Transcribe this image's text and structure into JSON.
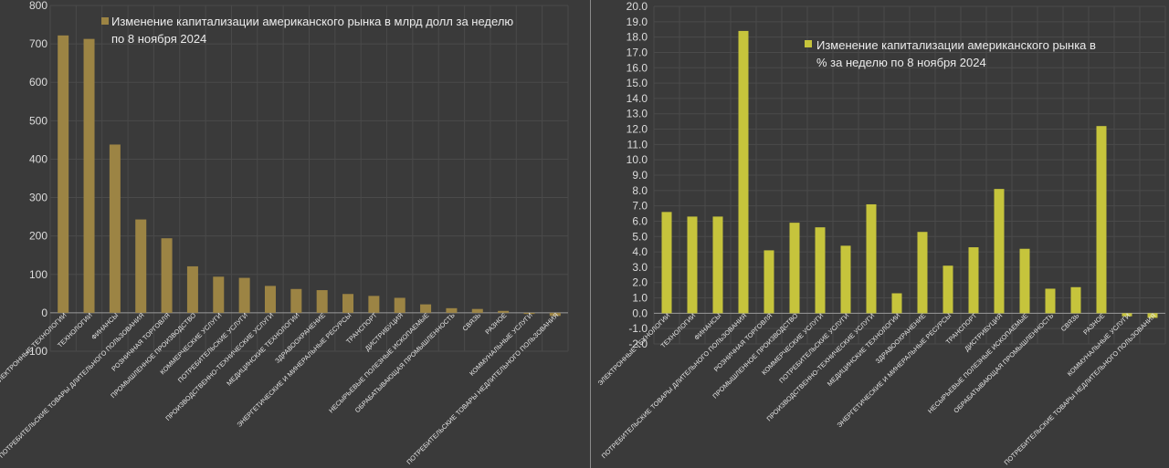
{
  "chart_data": [
    {
      "type": "bar",
      "title": "",
      "legend": {
        "entries": [
          "Изменение капитализации американского рынка в млрд долл за неделю по 8 ноября 2024"
        ],
        "lines": [
          "Изменение капитализации американского рынка в млрд долл за неделю",
          "по 8 ноября 2024"
        ],
        "position": "top-right"
      },
      "series": [
        {
          "name": "Изменение капитализации американского рынка в млрд долл за неделю по 8 ноября 2024",
          "color": "#9c8444",
          "values": [
            722,
            713,
            438,
            243,
            194,
            121,
            94,
            91,
            70,
            62,
            59,
            49,
            44,
            39,
            22,
            12,
            10,
            5,
            -3,
            -8
          ]
        }
      ],
      "categories": [
        "ЭЛЕКТРОННЫЕ ТЕХНОЛОГИИ",
        "ТЕХНОЛОГИИ",
        "ФИНАНСЫ",
        "ПОТРЕБИТЕЛЬСКИЕ ТОВАРЫ ДЛИТЕЛЬНОГО ПОЛЬЗОВАНИЯ",
        "РОЗНИЧНАЯ ТОРГОВЛЯ",
        "ПРОМЫШЛЕННОЕ ПРОИЗВОДСТВО",
        "КОММЕРЧЕСКИЕ УСЛУГИ",
        "ПОТРЕБИТЕЛЬСКИЕ УСЛУГИ",
        "ПРОИЗВОДСТВЕННО-ТЕХНИЧЕСКИЕ УСЛУГИ",
        "МЕДИЦИНСКИЕ ТЕХНОЛОГИИ",
        "ЗДРАВООХРАНЕНИЕ",
        "ЭНЕРГЕТИЧЕСКИЕ И МИНЕРАЛЬНЫЕ РЕСУРСЫ",
        "ТРАНСПОРТ",
        "ДИСТРИБУЦИЯ",
        "НЕСЫРЬЕВЫЕ ПОЛЕЗНЫЕ ИСКОПАЕМЫЕ",
        "ОБРАБАТЫВАЮЩАЯ ПРОМЫШЛЕННОСТЬ",
        "СВЯЗЬ",
        "РАЗНОЕ",
        "КОММУНАЛЬНЫЕ УСЛУГИ",
        "ПОТРЕБИТЕЛЬСКИЕ ТОВАРЫ НЕДЛИТЕЛЬНОГО ПОЛЬЗОВАНИЯ"
      ],
      "yticks": [
        -100,
        0,
        100,
        200,
        300,
        400,
        500,
        600,
        700,
        800
      ],
      "ylim": [
        -100,
        800
      ],
      "xlabel": "",
      "ylabel": "",
      "grid": true
    },
    {
      "type": "bar",
      "title": "",
      "legend": {
        "entries": [
          "Изменение капитализации американского рынка в % за неделю по 8 ноября 2024"
        ],
        "lines": [
          "Изменение капитализации американского рынка в",
          "% за неделю по 8 ноября 2024"
        ],
        "position": "top-right"
      },
      "series": [
        {
          "name": "Изменение капитализации американского рынка в % за неделю по 8 ноября 2024",
          "color": "#c6c43c",
          "values": [
            6.6,
            6.3,
            6.3,
            18.4,
            4.1,
            5.9,
            5.6,
            4.4,
            7.1,
            1.3,
            5.3,
            3.1,
            4.3,
            8.1,
            4.2,
            1.6,
            1.7,
            12.2,
            -0.2,
            -0.3
          ]
        }
      ],
      "categories": [
        "ЭЛЕКТРОННЫЕ ТЕХНОЛОГИИ",
        "ТЕХНОЛОГИИ",
        "ФИНАНСЫ",
        "ПОТРЕБИТЕЛЬСКИЕ ТОВАРЫ ДЛИТЕЛЬНОГО ПОЛЬЗОВАНИЯ",
        "РОЗНИЧНАЯ ТОРГОВЛЯ",
        "ПРОМЫШЛЕННОЕ ПРОИЗВОДСТВО",
        "КОММЕРЧЕСКИЕ УСЛУГИ",
        "ПОТРЕБИТЕЛЬСКИЕ УСЛУГИ",
        "ПРОИЗВОДСТВЕННО-ТЕХНИЧЕСКИЕ УСЛУГИ",
        "МЕДИЦИНСКИЕ ТЕХНОЛОГИИ",
        "ЗДРАВООХРАНЕНИЕ",
        "ЭНЕРГЕТИЧЕСКИЕ И МИНЕРАЛЬНЫЕ РЕСУРСЫ",
        "ТРАНСПОРТ",
        "ДИСТРИБУЦИЯ",
        "НЕСЫРЬЕВЫЕ ПОЛЕЗНЫЕ ИСКОПАЕМЫЕ",
        "ОБРАБАТЫВАЮЩАЯ ПРОМЫШЛЕННОСТЬ",
        "СВЯЗЬ",
        "РАЗНОЕ",
        "КОММУНАЛЬНЫЕ УСЛУГИ",
        "ПОТРЕБИТЕЛЬСКИЕ ТОВАРЫ НЕДЛИТЕЛЬНОГО ПОЛЬЗОВАНИЯ"
      ],
      "yticks": [
        "-2.0",
        "-1.0",
        "0.0",
        "1.0",
        "2.0",
        "3.0",
        "4.0",
        "5.0",
        "6.0",
        "7.0",
        "8.0",
        "9.0",
        "10.0",
        "11.0",
        "12.0",
        "13.0",
        "14.0",
        "15.0",
        "16.0",
        "17.0",
        "18.0",
        "19.0",
        "20.0"
      ],
      "ylim": [
        -2,
        20
      ],
      "xlabel": "",
      "ylabel": "",
      "grid": true
    }
  ]
}
